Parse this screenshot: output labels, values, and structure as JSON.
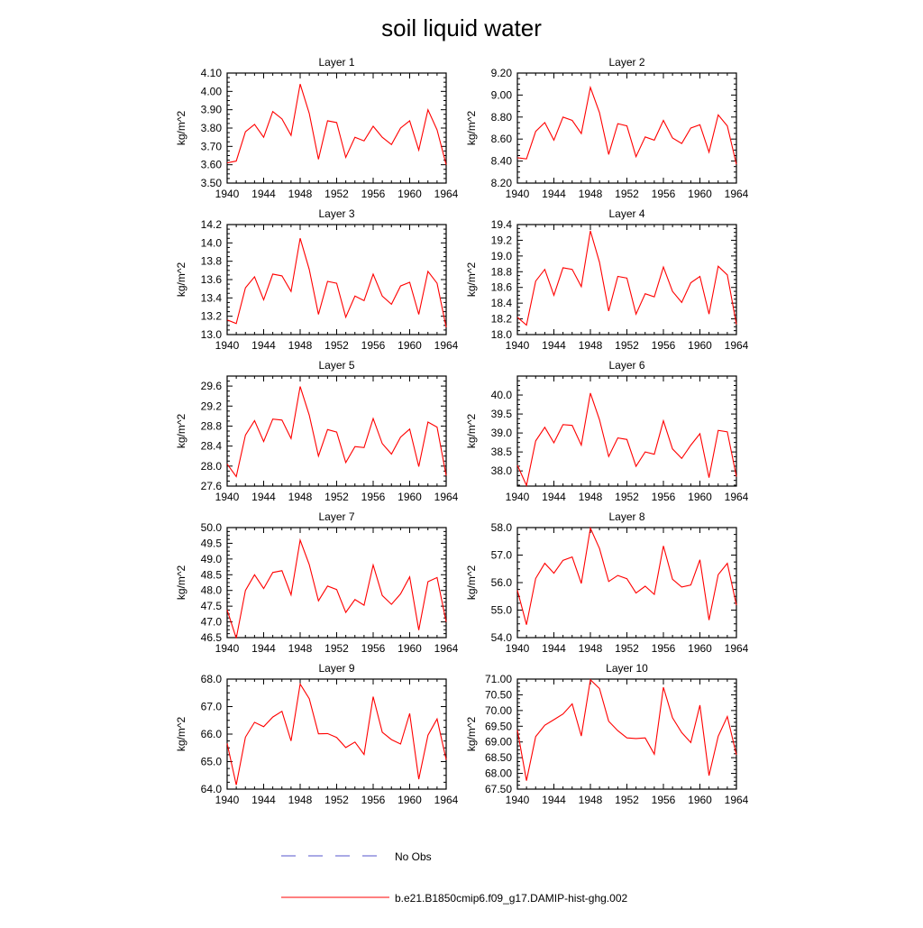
{
  "title": "soil liquid water",
  "colors": {
    "series": "#ff0000",
    "no_obs": "#5555cc",
    "axis": "#000000"
  },
  "legend": {
    "placement": "bottom-center",
    "entries": [
      {
        "label": "No Obs",
        "style": "dashed",
        "color": "#5555cc"
      },
      {
        "label": "b.e21.B1850cmip6.f09_g17.DAMIP-hist-ghg.002",
        "style": "solid",
        "color": "#ff0000"
      }
    ]
  },
  "chart_data": [
    {
      "type": "line",
      "title": "Layer 1",
      "ylabel": "kg/m^2",
      "xlim": [
        1940,
        1964
      ],
      "ylim": [
        3.5,
        4.1
      ],
      "x_ticks": [
        "1940",
        "1944",
        "1948",
        "1952",
        "1956",
        "1960",
        "1964"
      ],
      "y_ticks": [
        "3.50",
        "3.60",
        "3.70",
        "3.80",
        "3.90",
        "4.00",
        "4.10"
      ],
      "x": [
        1940,
        1941,
        1942,
        1943,
        1944,
        1945,
        1946,
        1947,
        1948,
        1949,
        1950,
        1951,
        1952,
        1953,
        1954,
        1955,
        1956,
        1957,
        1958,
        1959,
        1960,
        1961,
        1962,
        1963,
        1964
      ],
      "series": [
        {
          "name": "b.e21.B1850cmip6.f09_g17.DAMIP-hist-ghg.002",
          "values": [
            3.61,
            3.62,
            3.78,
            3.82,
            3.75,
            3.89,
            3.85,
            3.76,
            4.04,
            3.88,
            3.63,
            3.84,
            3.83,
            3.64,
            3.75,
            3.73,
            3.81,
            3.75,
            3.71,
            3.8,
            3.84,
            3.68,
            3.9,
            3.79,
            3.6
          ]
        }
      ]
    },
    {
      "type": "line",
      "title": "Layer 2",
      "ylabel": "kg/m^2",
      "xlim": [
        1940,
        1964
      ],
      "ylim": [
        8.2,
        9.2
      ],
      "x_ticks": [
        "1940",
        "1944",
        "1948",
        "1952",
        "1956",
        "1960",
        "1964"
      ],
      "y_ticks": [
        "8.20",
        "8.40",
        "8.60",
        "8.80",
        "9.00",
        "9.20"
      ],
      "x": [
        1940,
        1941,
        1942,
        1943,
        1944,
        1945,
        1946,
        1947,
        1948,
        1949,
        1950,
        1951,
        1952,
        1953,
        1954,
        1955,
        1956,
        1957,
        1958,
        1959,
        1960,
        1961,
        1962,
        1963,
        1964
      ],
      "series": [
        {
          "name": "b.e21.B1850cmip6.f09_g17.DAMIP-hist-ghg.002",
          "values": [
            8.43,
            8.42,
            8.67,
            8.75,
            8.59,
            8.8,
            8.77,
            8.65,
            9.07,
            8.84,
            8.46,
            8.74,
            8.72,
            8.44,
            8.62,
            8.59,
            8.77,
            8.61,
            8.56,
            8.7,
            8.73,
            8.48,
            8.82,
            8.72,
            8.37
          ]
        }
      ]
    },
    {
      "type": "line",
      "title": "Layer 3",
      "ylabel": "kg/m^2",
      "xlim": [
        1940,
        1964
      ],
      "ylim": [
        13.0,
        14.2
      ],
      "x_ticks": [
        "1940",
        "1944",
        "1948",
        "1952",
        "1956",
        "1960",
        "1964"
      ],
      "y_ticks": [
        "13.0",
        "13.2",
        "13.4",
        "13.6",
        "13.8",
        "14.0",
        "14.2"
      ],
      "x": [
        1940,
        1941,
        1942,
        1943,
        1944,
        1945,
        1946,
        1947,
        1948,
        1949,
        1950,
        1951,
        1952,
        1953,
        1954,
        1955,
        1956,
        1957,
        1958,
        1959,
        1960,
        1961,
        1962,
        1963,
        1964
      ],
      "series": [
        {
          "name": "b.e21.B1850cmip6.f09_g17.DAMIP-hist-ghg.002",
          "values": [
            13.16,
            13.12,
            13.51,
            13.63,
            13.38,
            13.66,
            13.64,
            13.47,
            14.05,
            13.71,
            13.22,
            13.58,
            13.56,
            13.19,
            13.42,
            13.37,
            13.66,
            13.42,
            13.33,
            13.53,
            13.57,
            13.22,
            13.69,
            13.56,
            13.08
          ]
        }
      ]
    },
    {
      "type": "line",
      "title": "Layer 4",
      "ylabel": "kg/m^2",
      "xlim": [
        1940,
        1964
      ],
      "ylim": [
        18.0,
        19.4
      ],
      "x_ticks": [
        "1940",
        "1944",
        "1948",
        "1952",
        "1956",
        "1960",
        "1964"
      ],
      "y_ticks": [
        "18.0",
        "18.2",
        "18.4",
        "18.6",
        "18.8",
        "19.0",
        "19.2",
        "19.4"
      ],
      "x": [
        1940,
        1941,
        1942,
        1943,
        1944,
        1945,
        1946,
        1947,
        1948,
        1949,
        1950,
        1951,
        1952,
        1953,
        1954,
        1955,
        1956,
        1957,
        1958,
        1959,
        1960,
        1961,
        1962,
        1963,
        1964
      ],
      "series": [
        {
          "name": "b.e21.B1850cmip6.f09_g17.DAMIP-hist-ghg.002",
          "values": [
            18.22,
            18.12,
            18.68,
            18.83,
            18.5,
            18.85,
            18.83,
            18.61,
            19.32,
            18.92,
            18.3,
            18.74,
            18.72,
            18.26,
            18.52,
            18.48,
            18.86,
            18.55,
            18.41,
            18.66,
            18.74,
            18.26,
            18.87,
            18.76,
            18.13
          ]
        }
      ]
    },
    {
      "type": "line",
      "title": "Layer 5",
      "ylabel": "kg/m^2",
      "xlim": [
        1940,
        1964
      ],
      "ylim": [
        27.6,
        29.8
      ],
      "x_ticks": [
        "1940",
        "1944",
        "1948",
        "1952",
        "1956",
        "1960",
        "1964"
      ],
      "y_ticks": [
        "27.6",
        "28.0",
        "28.4",
        "28.8",
        "29.2",
        "29.6"
      ],
      "x": [
        1940,
        1941,
        1942,
        1943,
        1944,
        1945,
        1946,
        1947,
        1948,
        1949,
        1950,
        1951,
        1952,
        1953,
        1954,
        1955,
        1956,
        1957,
        1958,
        1959,
        1960,
        1961,
        1962,
        1963,
        1964
      ],
      "series": [
        {
          "name": "b.e21.B1850cmip6.f09_g17.DAMIP-hist-ghg.002",
          "values": [
            28.04,
            27.79,
            28.62,
            28.91,
            28.49,
            28.94,
            28.92,
            28.55,
            29.59,
            29.02,
            28.2,
            28.73,
            28.68,
            28.07,
            28.39,
            28.37,
            28.95,
            28.45,
            28.24,
            28.58,
            28.74,
            27.99,
            28.88,
            28.78,
            27.81
          ]
        }
      ]
    },
    {
      "type": "line",
      "title": "Layer 6",
      "ylabel": "kg/m^2",
      "xlim": [
        1940,
        1964
      ],
      "ylim": [
        37.6,
        40.5
      ],
      "x_ticks": [
        "1940",
        "1944",
        "1948",
        "1952",
        "1956",
        "1960",
        "1964"
      ],
      "y_ticks": [
        "38.0",
        "38.5",
        "39.0",
        "39.5",
        "40.0"
      ],
      "x": [
        1940,
        1941,
        1942,
        1943,
        1944,
        1945,
        1946,
        1947,
        1948,
        1949,
        1950,
        1951,
        1952,
        1953,
        1954,
        1955,
        1956,
        1957,
        1958,
        1959,
        1960,
        1961,
        1962,
        1963,
        1964
      ],
      "series": [
        {
          "name": "b.e21.B1850cmip6.f09_g17.DAMIP-hist-ghg.002",
          "values": [
            38.15,
            37.62,
            38.79,
            39.15,
            38.74,
            39.22,
            39.2,
            38.68,
            40.05,
            39.35,
            38.38,
            38.87,
            38.83,
            38.12,
            38.5,
            38.44,
            39.32,
            38.58,
            38.33,
            38.68,
            38.98,
            37.82,
            39.07,
            39.03,
            37.85
          ]
        }
      ]
    },
    {
      "type": "line",
      "title": "Layer 7",
      "ylabel": "kg/m^2",
      "xlim": [
        1940,
        1964
      ],
      "ylim": [
        46.5,
        50.0
      ],
      "x_ticks": [
        "1940",
        "1944",
        "1948",
        "1952",
        "1956",
        "1960",
        "1964"
      ],
      "y_ticks": [
        "46.5",
        "47.0",
        "47.5",
        "48.0",
        "48.5",
        "49.0",
        "49.5",
        "50.0"
      ],
      "x": [
        1940,
        1941,
        1942,
        1943,
        1944,
        1945,
        1946,
        1947,
        1948,
        1949,
        1950,
        1951,
        1952,
        1953,
        1954,
        1955,
        1956,
        1957,
        1958,
        1959,
        1960,
        1961,
        1962,
        1963,
        1964
      ],
      "series": [
        {
          "name": "b.e21.B1850cmip6.f09_g17.DAMIP-hist-ghg.002",
          "values": [
            47.38,
            46.48,
            48.0,
            48.5,
            48.06,
            48.57,
            48.63,
            47.86,
            49.6,
            48.82,
            47.67,
            48.14,
            48.03,
            47.3,
            47.71,
            47.53,
            48.81,
            47.84,
            47.56,
            47.89,
            48.43,
            46.74,
            48.28,
            48.41,
            47.0
          ]
        }
      ]
    },
    {
      "type": "line",
      "title": "Layer 8",
      "ylabel": "kg/m^2",
      "xlim": [
        1940,
        1964
      ],
      "ylim": [
        54.0,
        58.0
      ],
      "x_ticks": [
        "1940",
        "1944",
        "1948",
        "1952",
        "1956",
        "1960",
        "1964"
      ],
      "y_ticks": [
        "54.0",
        "55.0",
        "56.0",
        "57.0",
        "58.0"
      ],
      "x": [
        1940,
        1941,
        1942,
        1943,
        1944,
        1945,
        1946,
        1947,
        1948,
        1949,
        1950,
        1951,
        1952,
        1953,
        1954,
        1955,
        1956,
        1957,
        1958,
        1959,
        1960,
        1961,
        1962,
        1963,
        1964
      ],
      "series": [
        {
          "name": "b.e21.B1850cmip6.f09_g17.DAMIP-hist-ghg.002",
          "values": [
            55.72,
            54.47,
            56.15,
            56.7,
            56.34,
            56.81,
            56.93,
            55.97,
            57.98,
            57.24,
            56.04,
            56.26,
            56.14,
            55.62,
            55.87,
            55.57,
            57.33,
            56.12,
            55.84,
            55.91,
            56.83,
            54.64,
            56.29,
            56.7,
            55.18
          ]
        }
      ]
    },
    {
      "type": "line",
      "title": "Layer 9",
      "ylabel": "kg/m^2",
      "xlim": [
        1940,
        1964
      ],
      "ylim": [
        64.0,
        68.0
      ],
      "x_ticks": [
        "1940",
        "1944",
        "1948",
        "1952",
        "1956",
        "1960",
        "1964"
      ],
      "y_ticks": [
        "64.0",
        "65.0",
        "66.0",
        "67.0",
        "68.0"
      ],
      "x": [
        1940,
        1941,
        1942,
        1943,
        1944,
        1945,
        1946,
        1947,
        1948,
        1949,
        1950,
        1951,
        1952,
        1953,
        1954,
        1955,
        1956,
        1957,
        1958,
        1959,
        1960,
        1961,
        1962,
        1963,
        1964
      ],
      "series": [
        {
          "name": "b.e21.B1850cmip6.f09_g17.DAMIP-hist-ghg.002",
          "values": [
            65.66,
            64.15,
            65.89,
            66.43,
            66.27,
            66.62,
            66.83,
            65.75,
            67.82,
            67.29,
            66.01,
            66.02,
            65.88,
            65.51,
            65.71,
            65.26,
            67.36,
            66.07,
            65.8,
            65.64,
            66.75,
            64.36,
            65.96,
            66.55,
            65.07
          ]
        }
      ]
    },
    {
      "type": "line",
      "title": "Layer 10",
      "ylabel": "kg/m^2",
      "xlim": [
        1940,
        1964
      ],
      "ylim": [
        67.5,
        71.0
      ],
      "x_ticks": [
        "1940",
        "1944",
        "1948",
        "1952",
        "1956",
        "1960",
        "1964"
      ],
      "y_ticks": [
        "67.50",
        "68.00",
        "68.50",
        "69.00",
        "69.50",
        "70.00",
        "70.50",
        "71.00"
      ],
      "x": [
        1940,
        1941,
        1942,
        1943,
        1944,
        1945,
        1946,
        1947,
        1948,
        1949,
        1950,
        1951,
        1952,
        1953,
        1954,
        1955,
        1956,
        1957,
        1958,
        1959,
        1960,
        1961,
        1962,
        1963,
        1964
      ],
      "series": [
        {
          "name": "b.e21.B1850cmip6.f09_g17.DAMIP-hist-ghg.002",
          "values": [
            69.38,
            67.77,
            69.17,
            69.53,
            69.71,
            69.89,
            70.21,
            69.19,
            70.98,
            70.7,
            69.66,
            69.36,
            69.13,
            69.11,
            69.13,
            68.61,
            70.74,
            69.77,
            69.3,
            68.98,
            70.17,
            67.93,
            69.18,
            69.81,
            68.59
          ]
        }
      ]
    }
  ]
}
